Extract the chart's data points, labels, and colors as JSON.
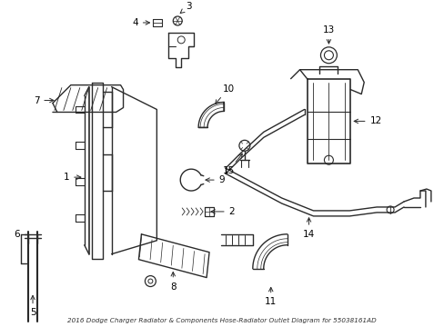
{
  "title": "2016 Dodge Charger Radiator & Components Hose-Radiator Outlet Diagram for 55038161AD",
  "background_color": "#ffffff",
  "line_color": "#2a2a2a",
  "label_color": "#000000",
  "fig_width": 4.89,
  "fig_height": 3.6,
  "dpi": 100
}
